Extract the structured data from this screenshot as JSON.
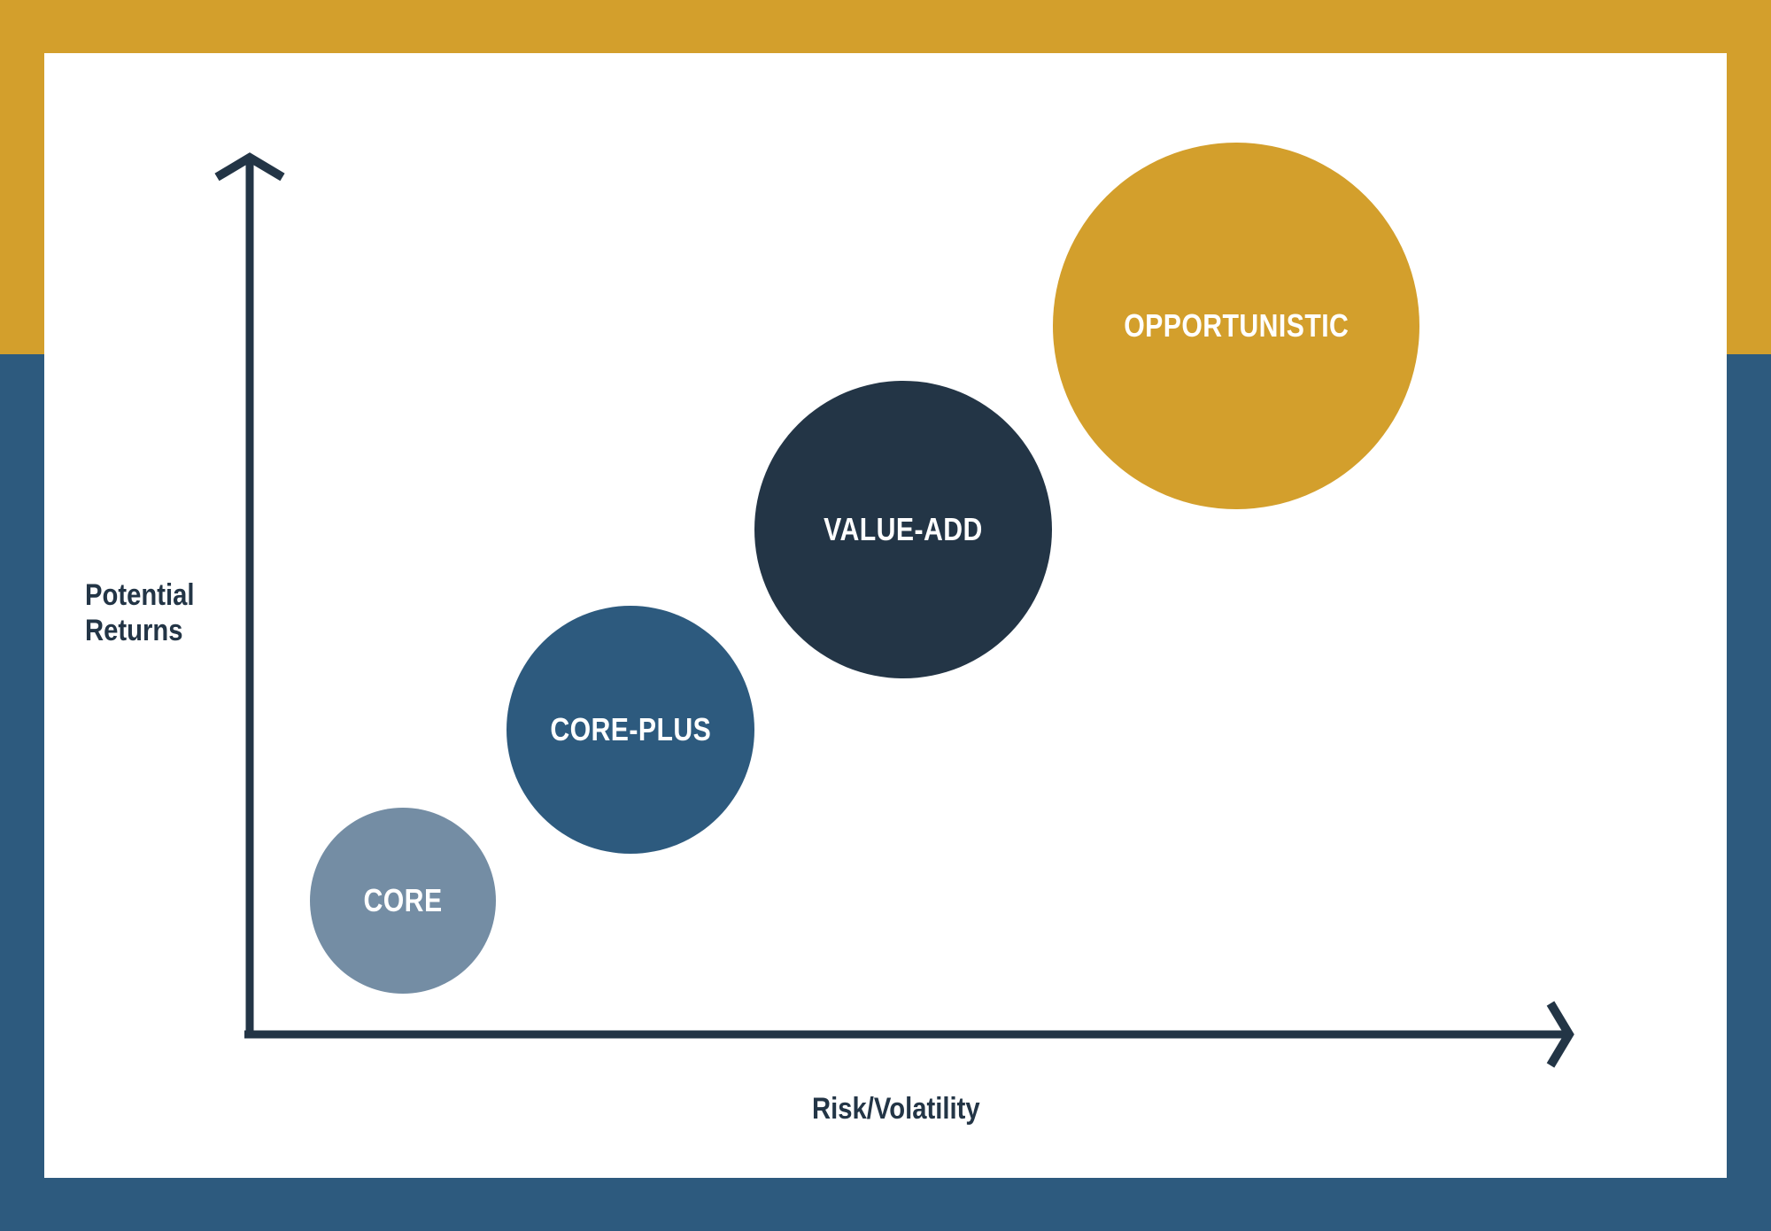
{
  "colors": {
    "gold": "#D39F2C",
    "blue": "#2D5A7E",
    "navy": "#233546",
    "slate": "#748DA4",
    "white": "#FFFFFF"
  },
  "diagram": {
    "y_axis_label": [
      "Potential",
      "Returns"
    ],
    "x_axis_label": "Risk/Volatility",
    "bubbles": [
      {
        "label": "CORE",
        "color": "#748DA4"
      },
      {
        "label": "CORE-PLUS",
        "color": "#2D5A7E"
      },
      {
        "label": "VALUE-ADD",
        "color": "#233546"
      },
      {
        "label": "OPPORTUNISTIC",
        "color": "#D39F2C"
      }
    ]
  }
}
